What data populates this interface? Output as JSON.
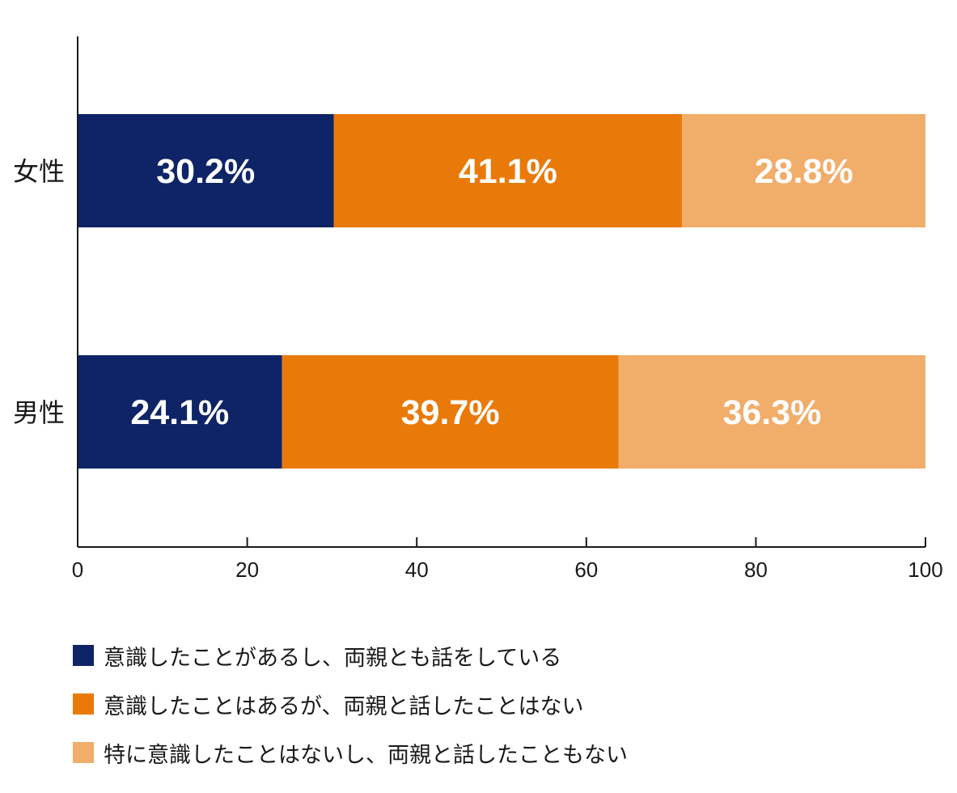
{
  "chart_data": {
    "type": "bar",
    "orientation": "horizontal",
    "stacked": true,
    "categories": [
      "女性",
      "男性"
    ],
    "series": [
      {
        "name": "意識したことがあるし、両親とも話をしている",
        "color": "#0e2466",
        "values": [
          30.2,
          24.1
        ]
      },
      {
        "name": "意識したことはあるが、両親と話したことはない",
        "color": "#e97a09",
        "values": [
          41.1,
          39.7
        ]
      },
      {
        "name": "特に意識したことはないし、両親と話したこともない",
        "color": "#f1ad6a",
        "values": [
          28.8,
          36.3
        ]
      }
    ],
    "data_labels": [
      [
        "30.2%",
        "24.1%"
      ],
      [
        "41.1%",
        "39.7%"
      ],
      [
        "28.8%",
        "36.3%"
      ]
    ],
    "xlim": [
      0,
      100
    ],
    "xticks": [
      0,
      20,
      40,
      60,
      80,
      100
    ],
    "xtick_labels": [
      "0",
      "20",
      "40",
      "60",
      "80",
      "100"
    ],
    "grid": false,
    "legend_position": "bottom"
  }
}
